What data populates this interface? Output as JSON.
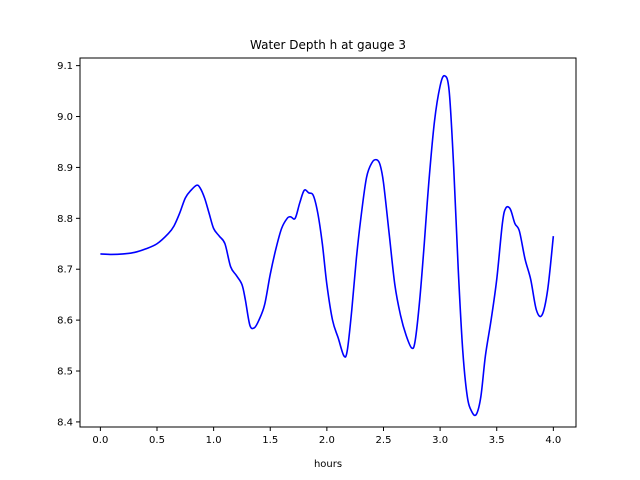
{
  "chart_data": {
    "type": "line",
    "title": "Water Depth h at gauge 3",
    "xlabel": "hours",
    "ylabel": "",
    "xlim": [
      -0.18,
      4.2
    ],
    "ylim": [
      8.39,
      9.115
    ],
    "xticks": [
      0.0,
      0.5,
      1.0,
      1.5,
      2.0,
      2.5,
      3.0,
      3.5,
      4.0
    ],
    "xtick_labels": [
      "0.0",
      "0.5",
      "1.0",
      "1.5",
      "2.0",
      "2.5",
      "3.0",
      "3.5",
      "4.0"
    ],
    "yticks": [
      8.4,
      8.5,
      8.6,
      8.7,
      8.8,
      8.9,
      9.0,
      9.1
    ],
    "ytick_labels": [
      "8.4",
      "8.5",
      "8.6",
      "8.7",
      "8.8",
      "8.9",
      "9.0",
      "9.1"
    ],
    "grid": false,
    "series": [
      {
        "color": "#0000ff",
        "x": [
          0.0,
          0.1,
          0.2,
          0.3,
          0.4,
          0.5,
          0.6,
          0.65,
          0.7,
          0.75,
          0.8,
          0.85,
          0.88,
          0.92,
          0.96,
          1.0,
          1.05,
          1.1,
          1.15,
          1.2,
          1.25,
          1.28,
          1.32,
          1.36,
          1.4,
          1.45,
          1.5,
          1.55,
          1.6,
          1.65,
          1.68,
          1.72,
          1.76,
          1.8,
          1.84,
          1.88,
          1.92,
          1.96,
          2.0,
          2.05,
          2.1,
          2.15,
          2.18,
          2.22,
          2.26,
          2.3,
          2.35,
          2.4,
          2.44,
          2.47,
          2.5,
          2.55,
          2.6,
          2.65,
          2.7,
          2.75,
          2.78,
          2.82,
          2.86,
          2.9,
          2.95,
          3.0,
          3.04,
          3.08,
          3.12,
          3.16,
          3.2,
          3.24,
          3.28,
          3.32,
          3.36,
          3.4,
          3.45,
          3.5,
          3.55,
          3.58,
          3.62,
          3.66,
          3.7,
          3.75,
          3.8,
          3.85,
          3.9,
          3.95,
          4.0
        ],
        "y": [
          8.73,
          8.729,
          8.73,
          8.733,
          8.74,
          8.75,
          8.77,
          8.785,
          8.81,
          8.84,
          8.855,
          8.865,
          8.86,
          8.84,
          8.81,
          8.78,
          8.765,
          8.75,
          8.705,
          8.688,
          8.67,
          8.64,
          8.59,
          8.585,
          8.6,
          8.63,
          8.69,
          8.74,
          8.78,
          8.8,
          8.803,
          8.8,
          8.83,
          8.855,
          8.85,
          8.845,
          8.81,
          8.75,
          8.67,
          8.6,
          8.565,
          8.53,
          8.54,
          8.62,
          8.72,
          8.8,
          8.88,
          8.91,
          8.915,
          8.905,
          8.87,
          8.77,
          8.67,
          8.61,
          8.57,
          8.545,
          8.56,
          8.64,
          8.75,
          8.87,
          8.99,
          9.06,
          9.08,
          9.05,
          8.9,
          8.7,
          8.54,
          8.45,
          8.42,
          8.415,
          8.45,
          8.53,
          8.6,
          8.68,
          8.79,
          8.82,
          8.818,
          8.79,
          8.775,
          8.72,
          8.68,
          8.62,
          8.61,
          8.66,
          8.765
        ]
      }
    ]
  }
}
